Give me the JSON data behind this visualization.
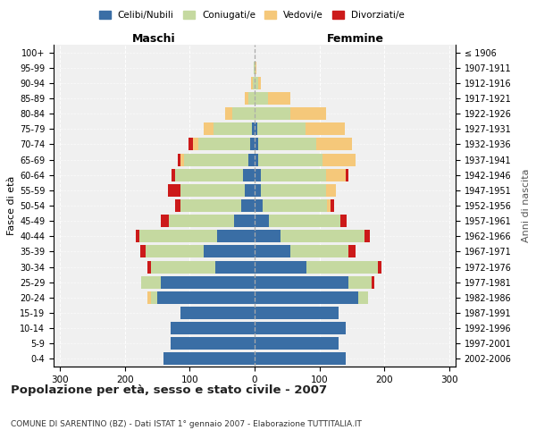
{
  "age_groups": [
    "0-4",
    "5-9",
    "10-14",
    "15-19",
    "20-24",
    "25-29",
    "30-34",
    "35-39",
    "40-44",
    "45-49",
    "50-54",
    "55-59",
    "60-64",
    "65-69",
    "70-74",
    "75-79",
    "80-84",
    "85-89",
    "90-94",
    "95-99",
    "100+"
  ],
  "birth_years": [
    "2002-2006",
    "1997-2001",
    "1992-1996",
    "1987-1991",
    "1982-1986",
    "1977-1981",
    "1972-1976",
    "1967-1971",
    "1962-1966",
    "1957-1961",
    "1952-1956",
    "1947-1951",
    "1942-1946",
    "1937-1941",
    "1932-1936",
    "1927-1931",
    "1922-1926",
    "1917-1921",
    "1912-1916",
    "1907-1911",
    "≤ 1906"
  ],
  "male": {
    "celibi": [
      140,
      130,
      130,
      115,
      150,
      145,
      60,
      78,
      58,
      32,
      20,
      15,
      18,
      9,
      7,
      4,
      0,
      0,
      0,
      0,
      0
    ],
    "coniugati": [
      0,
      0,
      0,
      0,
      10,
      30,
      100,
      90,
      120,
      100,
      95,
      100,
      105,
      100,
      80,
      60,
      35,
      10,
      3,
      1,
      0
    ],
    "vedovi": [
      0,
      0,
      0,
      0,
      5,
      0,
      0,
      0,
      0,
      0,
      0,
      0,
      0,
      5,
      8,
      15,
      10,
      5,
      2,
      0,
      0
    ],
    "divorziati": [
      0,
      0,
      0,
      0,
      0,
      0,
      5,
      8,
      5,
      12,
      8,
      18,
      5,
      5,
      7,
      0,
      0,
      0,
      0,
      0,
      0
    ]
  },
  "female": {
    "nubili": [
      140,
      130,
      140,
      130,
      160,
      145,
      80,
      55,
      40,
      22,
      12,
      10,
      10,
      5,
      5,
      4,
      0,
      0,
      0,
      0,
      0
    ],
    "coniugate": [
      0,
      0,
      0,
      0,
      15,
      35,
      110,
      90,
      130,
      110,
      100,
      100,
      100,
      100,
      90,
      75,
      55,
      20,
      5,
      2,
      0
    ],
    "vedove": [
      0,
      0,
      0,
      0,
      0,
      0,
      0,
      0,
      0,
      0,
      5,
      15,
      30,
      50,
      55,
      60,
      55,
      35,
      5,
      1,
      0
    ],
    "divorziate": [
      0,
      0,
      0,
      0,
      0,
      5,
      5,
      10,
      8,
      10,
      5,
      0,
      5,
      0,
      0,
      0,
      0,
      0,
      0,
      0,
      0
    ]
  },
  "colors": {
    "celibi": "#3a6ea5",
    "coniugati": "#c5d9a0",
    "vedovi": "#f5c87a",
    "divorziati": "#cc1a1a"
  },
  "legend_labels": [
    "Celibi/Nubili",
    "Coniugati/e",
    "Vedovi/e",
    "Divorziati/e"
  ],
  "legend_colors": [
    "#3a6ea5",
    "#c5d9a0",
    "#f5c87a",
    "#cc1a1a"
  ],
  "xlim": 310,
  "title": "Popolazione per età, sesso e stato civile - 2007",
  "subtitle": "COMUNE DI SARENTINO (BZ) - Dati ISTAT 1° gennaio 2007 - Elaborazione TUTTITALIA.IT",
  "xlabel_left": "Maschi",
  "xlabel_right": "Femmine",
  "ylabel_left": "Fasce di età",
  "ylabel_right": "Anni di nascita",
  "bg_color": "#ffffff",
  "grid_color": "#cccccc"
}
